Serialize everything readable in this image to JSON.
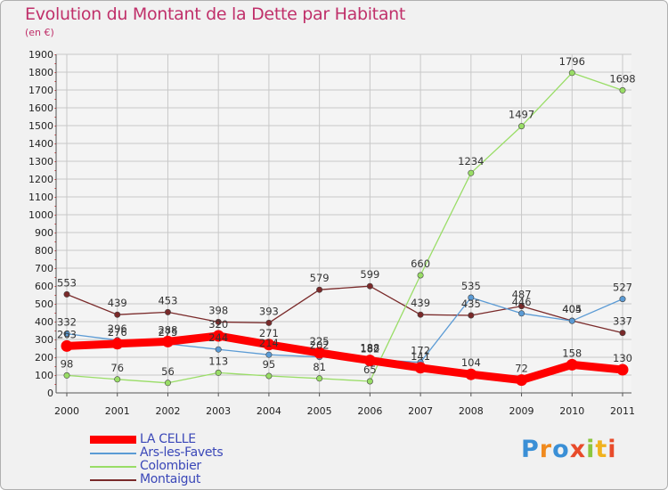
{
  "title": "Evolution du Montant de la Dette par Habitant",
  "subtitle": "(en €)",
  "logo_text": "Proxiti",
  "colors": {
    "title": "#c0306a",
    "background": "#f1f1f1",
    "grid": "#c8c8c8",
    "axis_red_dots": "#cc2222"
  },
  "chart_data": {
    "type": "line",
    "title": "Evolution du Montant de la Dette par Habitant",
    "subtitle": "(en €)",
    "xlabel": "",
    "ylabel": "",
    "x": [
      "2000",
      "2001",
      "2002",
      "2003",
      "2004",
      "2005",
      "2006",
      "2007",
      "2008",
      "2009",
      "2010",
      "2011"
    ],
    "ylim": [
      0,
      1900
    ],
    "yticks": [
      0,
      100,
      200,
      300,
      400,
      500,
      600,
      700,
      800,
      900,
      1000,
      1100,
      1200,
      1300,
      1400,
      1500,
      1600,
      1700,
      1800,
      1900
    ],
    "grid": true,
    "legend_position": "bottom-left",
    "series": [
      {
        "name": "LA CELLE",
        "color": "#ff0000",
        "values": [
          263,
          276,
          288,
          320,
          271,
          225,
          182,
          141,
          104,
          72,
          158,
          130
        ],
        "labels": [
          "263",
          "276",
          "288",
          "320",
          "271",
          "225",
          "182",
          "141",
          "104",
          "72",
          "158",
          "130"
        ]
      },
      {
        "name": "Ars-les-Favets",
        "color": "#5b9bd5",
        "values": [
          332,
          296,
          275,
          244,
          214,
          202,
          188,
          172,
          535,
          446,
          404,
          527
        ],
        "labels": [
          "332",
          "296",
          "275",
          "244",
          "214",
          "202",
          "188",
          "172",
          "535",
          "446",
          "404",
          "527"
        ]
      },
      {
        "name": "Colombier",
        "color": "#99dd66",
        "values": [
          98,
          76,
          56,
          113,
          95,
          81,
          65,
          660,
          1234,
          1497,
          1796,
          1698
        ],
        "labels": [
          "98",
          "76",
          "56",
          "113",
          "95",
          "81",
          "65",
          "660",
          "1234",
          "1497",
          "1796",
          "1698"
        ]
      },
      {
        "name": "Montaigut",
        "color": "#7a2a2a",
        "values": [
          553,
          439,
          453,
          398,
          393,
          579,
          599,
          439,
          435,
          487,
          405,
          337
        ],
        "labels": [
          "553",
          "439",
          "453",
          "398",
          "393",
          "579",
          "599",
          "439",
          "435",
          "487",
          "405",
          "337"
        ]
      }
    ]
  }
}
